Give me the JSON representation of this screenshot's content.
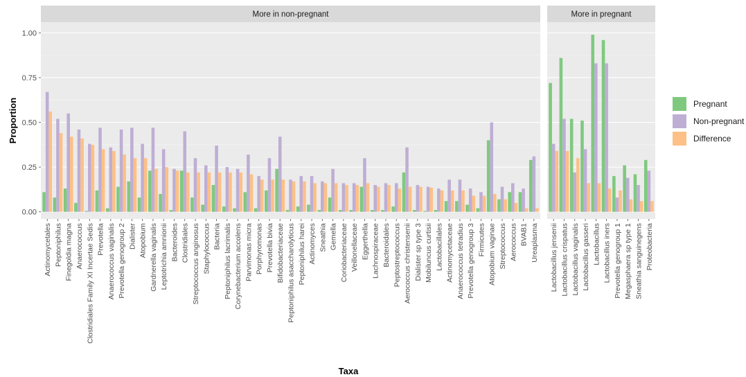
{
  "chart_data": {
    "type": "bar",
    "xlabel": "Taxa",
    "ylabel": "Proportion",
    "ylim": [
      -0.04,
      1.06
    ],
    "yticks": [
      {
        "value": 0.0,
        "label": "0.00"
      },
      {
        "value": 0.25,
        "label": "0.25"
      },
      {
        "value": 0.5,
        "label": "0.50"
      },
      {
        "value": 0.75,
        "label": "0.75"
      },
      {
        "value": 1.0,
        "label": "1.00"
      }
    ],
    "grid": true,
    "legend_position": "right",
    "series": [
      {
        "name": "Pregnant",
        "color": "#7fc97f"
      },
      {
        "name": "Non-pregnant",
        "color": "#beaed4"
      },
      {
        "name": "Difference",
        "color": "#fdc086"
      }
    ],
    "facets": [
      {
        "title": "More in non-pregnant",
        "categories": [
          "Actinomycetales",
          "Peptoniphilus",
          "Finegoldia magna",
          "Anaerococcus",
          "Clostridiales Family XI Incertae Sedis",
          "Prevotella",
          "Anaerococcus vaginalis",
          "Prevotella genogroup 2",
          "Dialister",
          "Atopobium",
          "Gardnerella vaginalis",
          "Leptotrichia amnionii",
          "Bacteroides",
          "Clostridiales",
          "Streptococcus anginosus",
          "Staphylococcus",
          "Bacteria",
          "Peptoniphilus lacrimalis",
          "Corynebacterium accolens",
          "Parvimonas micra",
          "Porphyromonas",
          "Prevotella bivia",
          "Bifidobacteriaceae",
          "Peptoniphilus asaccharolyticus",
          "Peptoniphilus harei",
          "Actinomyces",
          "Sneathia",
          "Gemella",
          "Coriobacteriaceae",
          "Veillonellaceae",
          "Eggerthella",
          "Lachnospiraceae",
          "Bacteroidales",
          "Peptostreptococcus",
          "Aerococcus christensenii",
          "Dialister sp type 3",
          "Mobiluncus curtisii",
          "Lactobacillales",
          "Actinomycetaceae",
          "Anaerococcus tetradius",
          "Prevotella genogroup 3",
          "Firmicutes",
          "Atopobium vaginae",
          "Streptococcus",
          "Aerococcus",
          "BVAB1",
          "Ureaplasma"
        ],
        "values": {
          "Pregnant": [
            0.11,
            0.08,
            0.13,
            0.05,
            0.005,
            0.12,
            0.02,
            0.14,
            0.17,
            0.08,
            0.23,
            0.1,
            0.01,
            0.23,
            0.08,
            0.04,
            0.15,
            0.03,
            0.02,
            0.11,
            0.02,
            0.12,
            0.24,
            0.01,
            0.03,
            0.04,
            0.01,
            0.08,
            0.01,
            0.01,
            0.14,
            0.01,
            0.01,
            0.03,
            0.22,
            0.01,
            0.005,
            0.01,
            0.06,
            0.06,
            0.04,
            0.02,
            0.4,
            0.07,
            0.11,
            0.11,
            0.29
          ],
          "Non-pregnant": [
            0.67,
            0.52,
            0.55,
            0.46,
            0.38,
            0.47,
            0.36,
            0.46,
            0.47,
            0.38,
            0.47,
            0.35,
            0.24,
            0.45,
            0.3,
            0.26,
            0.37,
            0.25,
            0.24,
            0.32,
            0.2,
            0.3,
            0.42,
            0.18,
            0.2,
            0.2,
            0.17,
            0.24,
            0.16,
            0.16,
            0.3,
            0.15,
            0.16,
            0.16,
            0.36,
            0.15,
            0.14,
            0.13,
            0.18,
            0.18,
            0.13,
            0.11,
            0.5,
            0.14,
            0.16,
            0.13,
            0.31
          ]
        }
      },
      {
        "title": "More in pregnant",
        "categories": [
          "Lactobacillus jensenii",
          "Lactobacillus crispatus",
          "Lactobacillus vaginalis",
          "Lactobacillus gasseri",
          "Lactobacillus",
          "Lactobacillus iners",
          "Prevotella genogroup 1",
          "Megasphaera sp type 1",
          "Sneathia sanguinegens",
          "Proteobacteria"
        ],
        "values": {
          "Pregnant": [
            0.72,
            0.86,
            0.52,
            0.51,
            0.99,
            0.96,
            0.2,
            0.26,
            0.21,
            0.29
          ],
          "Non-pregnant": [
            0.38,
            0.52,
            0.22,
            0.35,
            0.83,
            0.83,
            0.08,
            0.19,
            0.15,
            0.23
          ]
        }
      }
    ]
  }
}
